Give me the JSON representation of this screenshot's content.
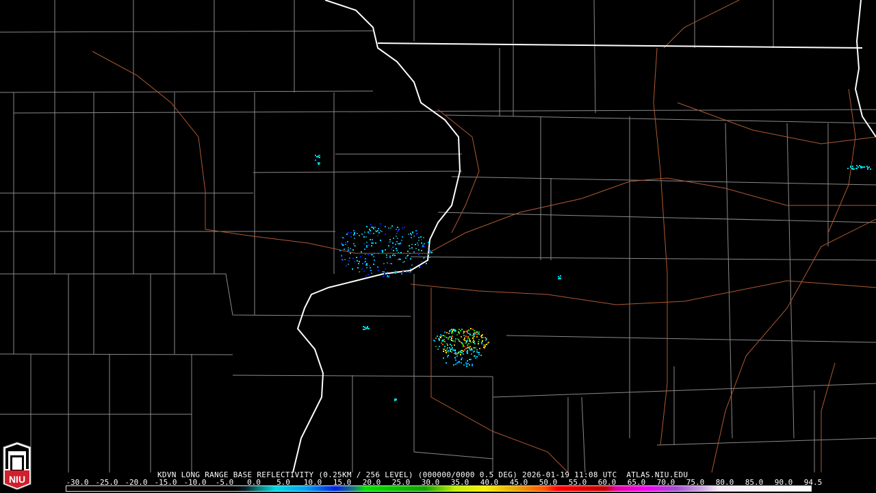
{
  "product": {
    "title": "KDVN LONG RANGE BASE REFLECTIVITY (0.25KM / 256 LEVEL) (000000/0000 0.5 DEG) 2026-01-19 11:08 UTC  ATLAS.NIU.EDU"
  },
  "logo": {
    "text": "NIU",
    "colors": {
      "red": "#d0202e",
      "white": "#ffffff"
    }
  },
  "colorbar": {
    "unit_hint": "dBZ",
    "labels": [
      "-30.0",
      "-25.0",
      "-20.0",
      "-15.0",
      "-10.0",
      "-5.0",
      "0.0",
      "5.0",
      "10.0",
      "15.0",
      "20.0",
      "25.0",
      "30.0",
      "35.0",
      "40.0",
      "45.0",
      "50.0",
      "55.0",
      "60.0",
      "65.0",
      "70.0",
      "75.0",
      "80.0",
      "85.0",
      "90.0",
      "94.5"
    ],
    "range": [
      -30,
      94.5
    ],
    "stops": [
      {
        "v": -30,
        "c": "#000000"
      },
      {
        "v": -2,
        "c": "#000000"
      },
      {
        "v": 0,
        "c": "#06202a"
      },
      {
        "v": 2,
        "c": "#0a7878"
      },
      {
        "v": 5,
        "c": "#00d8e0"
      },
      {
        "v": 10,
        "c": "#00a0f0"
      },
      {
        "v": 15,
        "c": "#0020e0"
      },
      {
        "v": 18,
        "c": "#1a7880"
      },
      {
        "v": 20,
        "c": "#00e000"
      },
      {
        "v": 30,
        "c": "#10a000"
      },
      {
        "v": 35,
        "c": "#c0f000"
      },
      {
        "v": 40,
        "c": "#f8f000"
      },
      {
        "v": 45,
        "c": "#e8a800"
      },
      {
        "v": 50,
        "c": "#ff5000"
      },
      {
        "v": 52,
        "c": "#ff0000"
      },
      {
        "v": 60,
        "c": "#c00000"
      },
      {
        "v": 62,
        "c": "#e000a0"
      },
      {
        "v": 67,
        "c": "#f000f0"
      },
      {
        "v": 72,
        "c": "#a050d0"
      },
      {
        "v": 76,
        "c": "#c8a0e0"
      },
      {
        "v": 79,
        "c": "#f4ecf8"
      },
      {
        "v": 94.5,
        "c": "#ffffff"
      }
    ]
  },
  "map_colors": {
    "county": "#8a8a8a",
    "state": "#ffffff",
    "road": "#b05a30"
  }
}
